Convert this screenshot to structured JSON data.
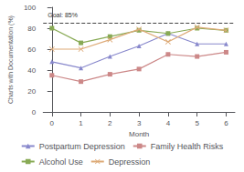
{
  "chart_data": {
    "type": "line",
    "x": [
      0,
      1,
      2,
      3,
      4,
      5,
      6
    ],
    "series": [
      {
        "name": "Postpartum Depression",
        "color": "#8888cc",
        "marker": "triangle",
        "values": [
          48,
          42,
          53,
          63,
          75,
          65,
          65
        ]
      },
      {
        "name": "Family Health Risks",
        "color": "#cc8888",
        "marker": "square",
        "values": [
          35,
          29,
          36,
          41,
          55,
          53,
          57
        ]
      },
      {
        "name": "Alcohol Use",
        "color": "#88aa55",
        "marker": "square",
        "values": [
          80,
          66,
          72,
          78,
          75,
          80,
          78
        ]
      },
      {
        "name": "Depression",
        "color": "#ddaa77",
        "marker": "x",
        "values": [
          60,
          60,
          69,
          79,
          67,
          81,
          78
        ]
      }
    ],
    "annotations": [
      {
        "text": "Goal: 85%",
        "y": 85,
        "line_style": "dashed"
      }
    ],
    "xlabel": "Month",
    "ylabel": "Charts with Documentation (%)",
    "xlim": [
      -0.3,
      6.3
    ],
    "xticks": [
      0,
      1,
      2,
      3,
      4,
      5,
      6
    ],
    "ylim": [
      0,
      100
    ],
    "yticks": [
      0,
      20,
      40,
      60,
      80,
      100
    ],
    "grid": false,
    "legend": "bottom"
  }
}
